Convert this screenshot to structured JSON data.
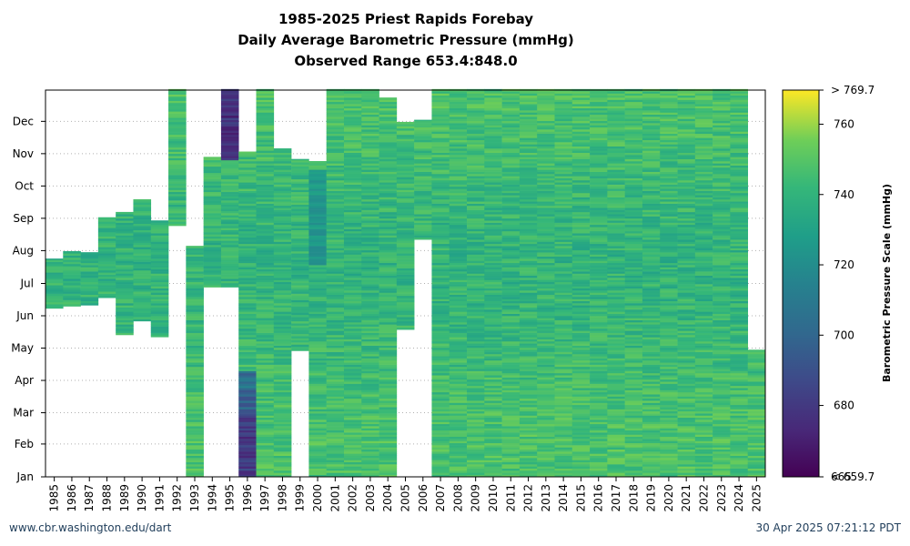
{
  "chart_data": {
    "type": "heatmap",
    "title": [
      "1985-2025 Priest Rapids Forebay",
      "Daily Average Barometric Pressure (mmHg)",
      "Observed Range 653.4:848.0"
    ],
    "years": [
      "1985",
      "1986",
      "1987",
      "1988",
      "1989",
      "1990",
      "1991",
      "1992",
      "1993",
      "1994",
      "1995",
      "1996",
      "1997",
      "1998",
      "1999",
      "2000",
      "2001",
      "2002",
      "2003",
      "2004",
      "2005",
      "2006",
      "2007",
      "2008",
      "2009",
      "2010",
      "2011",
      "2012",
      "2013",
      "2014",
      "2015",
      "2016",
      "2017",
      "2018",
      "2019",
      "2020",
      "2021",
      "2022",
      "2023",
      "2024",
      "2025"
    ],
    "months": [
      "Jan",
      "Feb",
      "Mar",
      "Apr",
      "May",
      "Jun",
      "Jul",
      "Aug",
      "Sep",
      "Oct",
      "Nov",
      "Dec"
    ],
    "coverage_day_of_year": [
      [
        [
          160,
          206
        ]
      ],
      [
        [
          162,
          213
        ]
      ],
      [
        [
          163,
          212
        ]
      ],
      [
        [
          170,
          245
        ]
      ],
      [
        [
          135,
          250
        ]
      ],
      [
        [
          148,
          262
        ]
      ],
      [
        [
          133,
          242
        ]
      ],
      [
        [
          238,
          366
        ]
      ],
      [
        [
          1,
          218
        ]
      ],
      [
        [
          180,
          302
        ]
      ],
      [
        [
          180,
          366
        ]
      ],
      [
        [
          1,
          307
        ]
      ],
      [
        [
          1,
          366
        ]
      ],
      [
        [
          1,
          310
        ]
      ],
      [
        [
          120,
          300
        ]
      ],
      [
        [
          1,
          298
        ]
      ],
      [
        [
          1,
          366
        ]
      ],
      [
        [
          1,
          366
        ]
      ],
      [
        [
          1,
          366
        ]
      ],
      [
        [
          1,
          358
        ]
      ],
      [
        [
          140,
          335
        ]
      ],
      [
        [
          225,
          337
        ]
      ],
      [
        [
          1,
          366
        ]
      ],
      [
        [
          1,
          366
        ]
      ],
      [
        [
          1,
          366
        ]
      ],
      [
        [
          1,
          366
        ]
      ],
      [
        [
          1,
          366
        ]
      ],
      [
        [
          1,
          366
        ]
      ],
      [
        [
          1,
          366
        ]
      ],
      [
        [
          1,
          366
        ]
      ],
      [
        [
          1,
          366
        ]
      ],
      [
        [
          1,
          366
        ]
      ],
      [
        [
          1,
          366
        ]
      ],
      [
        [
          1,
          366
        ]
      ],
      [
        [
          1,
          366
        ]
      ],
      [
        [
          1,
          366
        ]
      ],
      [
        [
          1,
          366
        ]
      ],
      [
        [
          1,
          366
        ]
      ],
      [
        [
          1,
          366
        ]
      ],
      [
        [
          1,
          366
        ]
      ],
      [
        [
          1,
          120
        ]
      ]
    ],
    "value_note": "Daily pressure values mostly 735-760 mmHg; 1995 late-year and 1996 early-year values near 670-690; 2000 Jul-Oct near 720-730.",
    "colorbar": {
      "label": "Barometric Pressure Scale (mmHg)",
      "min": 659.7,
      "max": 769.7,
      "ticks": [
        680,
        700,
        720,
        740,
        760
      ],
      "top_label": "> 769.7",
      "bottom_label": "< 659.7",
      "bottom_overlap_label": "665",
      "colormap": "viridis"
    }
  },
  "footer": {
    "left": "www.cbr.washington.edu/dart",
    "right": "30 Apr 2025 07:21:12 PDT"
  }
}
